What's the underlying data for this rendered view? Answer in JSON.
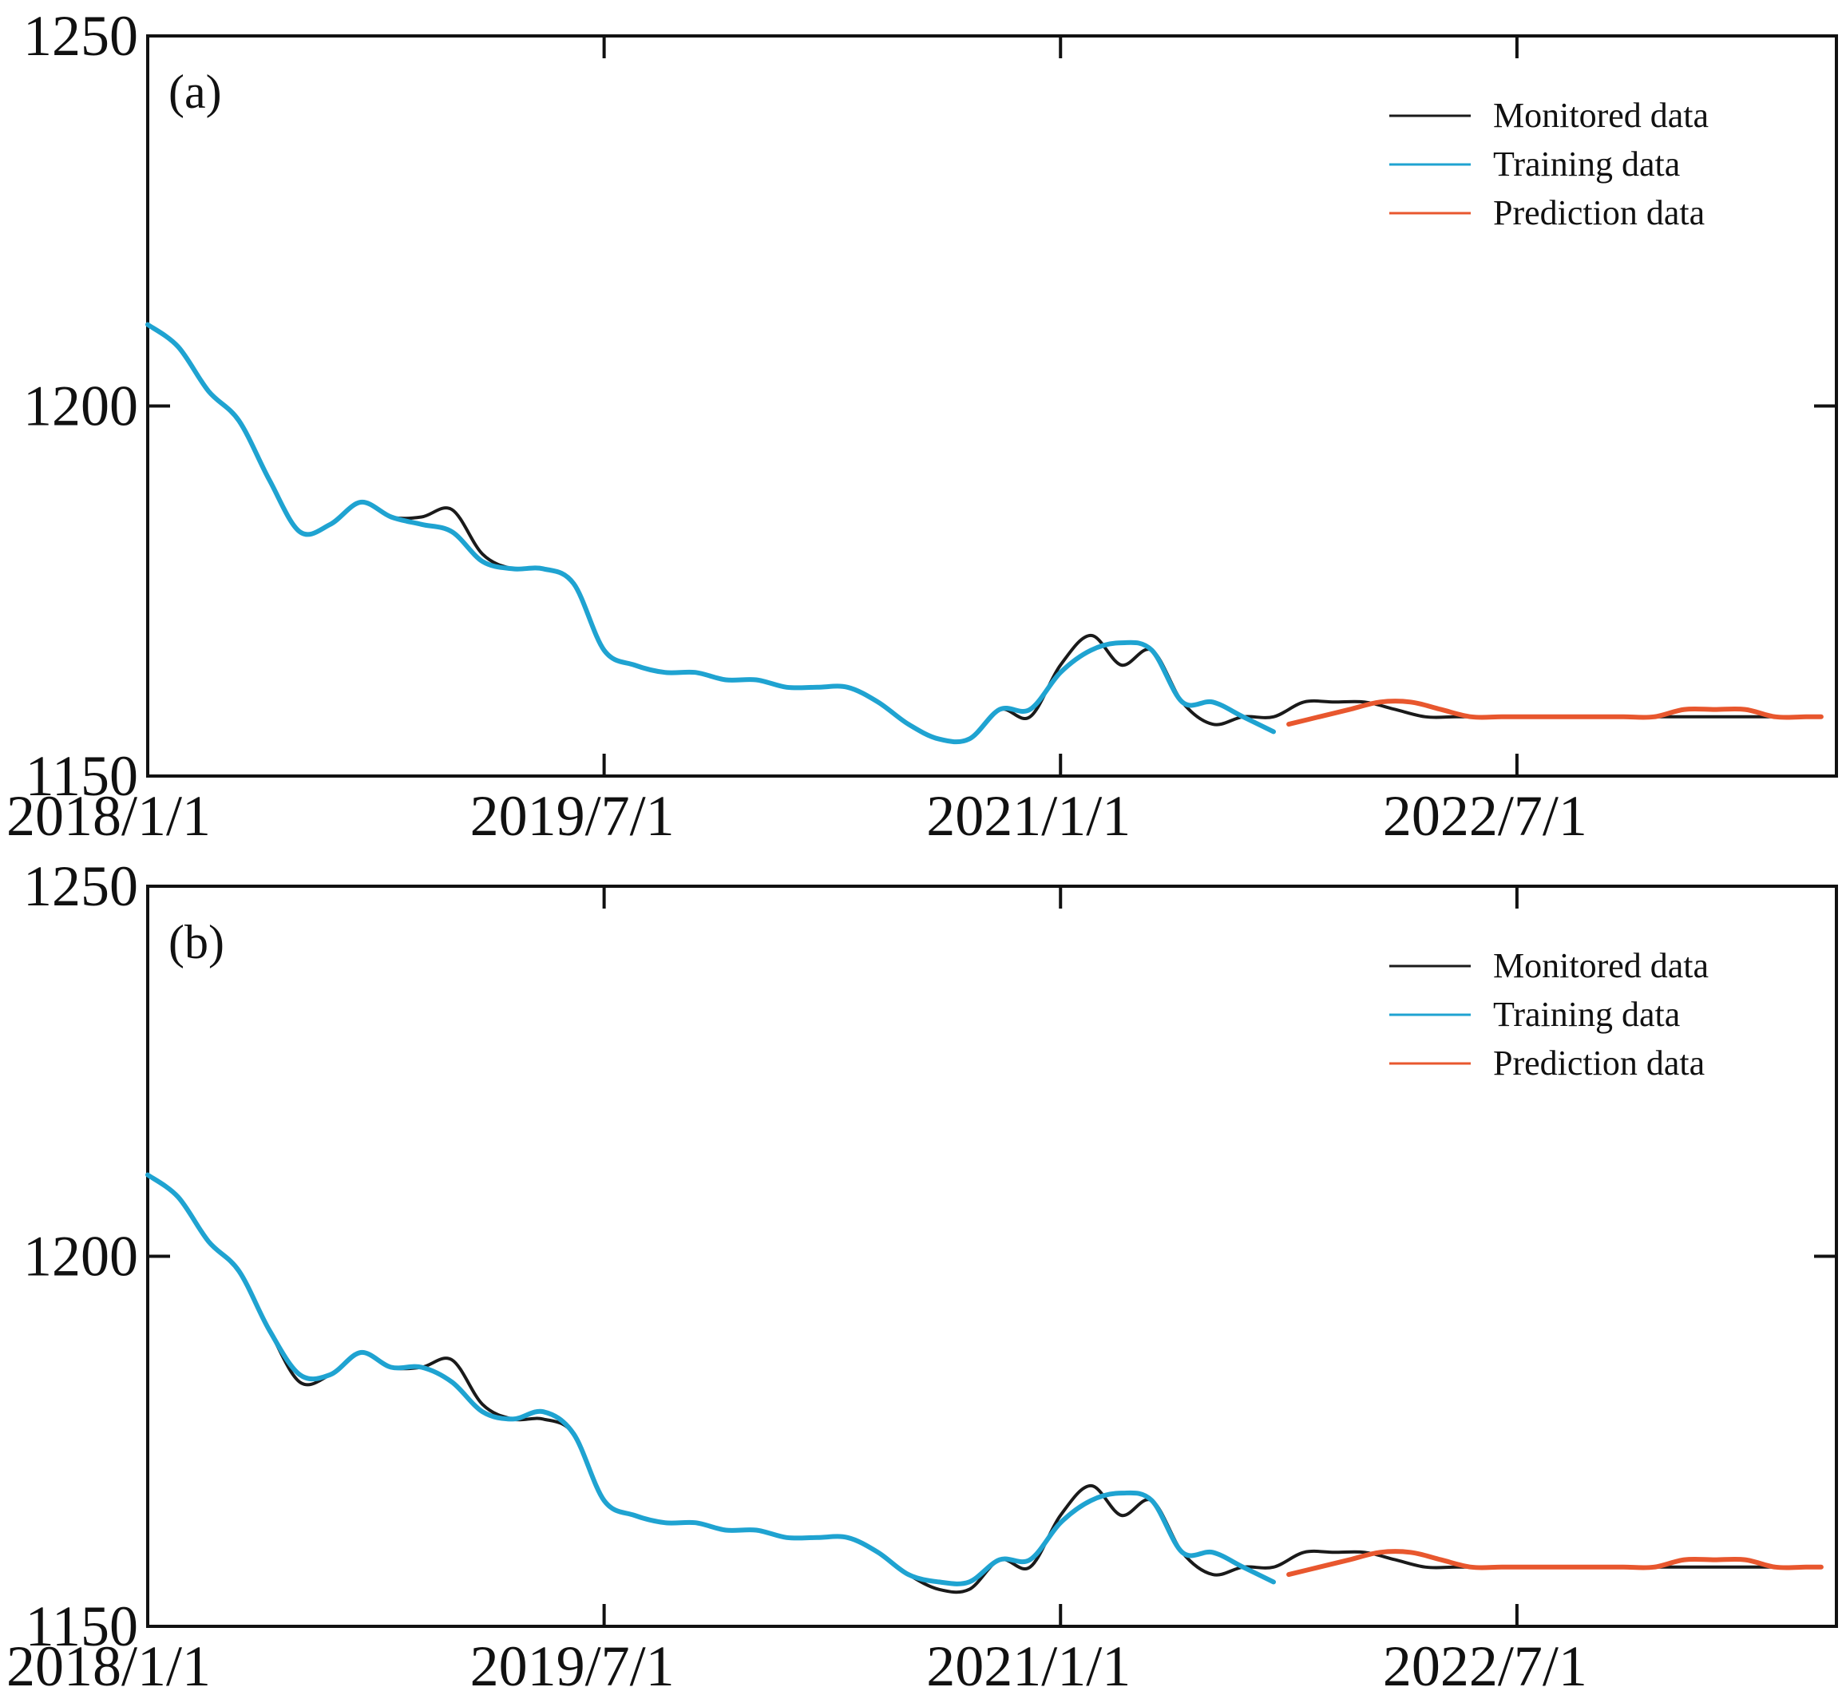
{
  "colors": {
    "monitored": "#1a1a1a",
    "training": "#1fa3d1",
    "prediction": "#e8572e",
    "axis": "#111111"
  },
  "chart_data": [
    {
      "type": "line",
      "panel_label": "(a)",
      "title": "",
      "xlabel": "",
      "ylabel": "",
      "x_is_decimal_year": true,
      "xlim": [
        2018.0,
        2023.55
      ],
      "ylim": [
        1150,
        1250
      ],
      "x_ticks": [
        2018.0,
        2019.5,
        2021.0,
        2022.5
      ],
      "x_tick_labels": [
        "2018/1/1",
        "2019/7/1",
        "2021/1/1",
        "2022/7/1"
      ],
      "y_ticks": [
        1150,
        1200,
        1250
      ],
      "y_tick_labels": [
        "1150",
        "1200",
        "1250"
      ],
      "legend": [
        "Monitored data",
        "Training data",
        "Prediction data"
      ],
      "legend_position": "top-right",
      "series": [
        {
          "name": "Monitored data",
          "x": [
            2018.0,
            2018.1,
            2018.2,
            2018.3,
            2018.4,
            2018.5,
            2018.6,
            2018.7,
            2018.8,
            2018.9,
            2019.0,
            2019.1,
            2019.2,
            2019.3,
            2019.4,
            2019.5,
            2019.6,
            2019.7,
            2019.8,
            2019.9,
            2020.0,
            2020.1,
            2020.2,
            2020.3,
            2020.4,
            2020.5,
            2020.6,
            2020.7,
            2020.8,
            2020.9,
            2021.0,
            2021.1,
            2021.2,
            2021.3,
            2021.4,
            2021.5,
            2021.6,
            2021.7,
            2021.8,
            2021.9,
            2022.0,
            2022.1,
            2022.2,
            2022.3,
            2022.4,
            2022.5,
            2022.6,
            2022.7,
            2022.8,
            2022.9,
            2023.0,
            2023.1,
            2023.2,
            2023.3,
            2023.4,
            2023.5
          ],
          "y": [
            1211,
            1208,
            1202,
            1198,
            1190,
            1183,
            1184,
            1187,
            1185,
            1185,
            1186,
            1180,
            1178,
            1178,
            1176,
            1167,
            1165,
            1164,
            1164,
            1163,
            1163,
            1162,
            1162,
            1162,
            1160,
            1157,
            1155,
            1155,
            1159,
            1158,
            1165,
            1169,
            1165,
            1167,
            1160,
            1157,
            1158,
            1158,
            1160,
            1160,
            1160,
            1159,
            1158,
            1158,
            1158,
            1158,
            1158,
            1158,
            1158,
            1158,
            1158,
            1158,
            1158,
            1158,
            1158,
            1158
          ],
          "smooth": true
        },
        {
          "name": "Training data",
          "x": [
            2018.0,
            2018.1,
            2018.2,
            2018.3,
            2018.4,
            2018.5,
            2018.6,
            2018.7,
            2018.8,
            2018.9,
            2019.0,
            2019.1,
            2019.2,
            2019.3,
            2019.4,
            2019.5,
            2019.6,
            2019.7,
            2019.8,
            2019.9,
            2020.0,
            2020.1,
            2020.2,
            2020.3,
            2020.4,
            2020.5,
            2020.6,
            2020.7,
            2020.8,
            2020.9,
            2021.0,
            2021.1,
            2021.2,
            2021.3,
            2021.4,
            2021.5,
            2021.6,
            2021.7
          ],
          "y": [
            1211,
            1208,
            1202,
            1198,
            1190,
            1183,
            1184,
            1187,
            1185,
            1184,
            1183,
            1179,
            1178,
            1178,
            1176,
            1167,
            1165,
            1164,
            1164,
            1163,
            1163,
            1162,
            1162,
            1162,
            1160,
            1157,
            1155,
            1155,
            1159,
            1159,
            1164,
            1167,
            1168,
            1167,
            1160,
            1160,
            1158,
            1156
          ],
          "smooth": true
        },
        {
          "name": "Prediction data",
          "x": [
            2021.75,
            2021.85,
            2021.95,
            2022.05,
            2022.15,
            2022.25,
            2022.35,
            2022.45,
            2022.55,
            2022.65,
            2022.75,
            2022.85,
            2022.95,
            2023.05,
            2023.15,
            2023.25,
            2023.35,
            2023.45,
            2023.5
          ],
          "y": [
            1157,
            1158,
            1159,
            1160,
            1160,
            1159,
            1158,
            1158,
            1158,
            1158,
            1158,
            1158,
            1158,
            1159,
            1159,
            1159,
            1158,
            1158,
            1158
          ],
          "smooth": true
        }
      ]
    },
    {
      "type": "line",
      "panel_label": "(b)",
      "title": "",
      "xlabel": "",
      "ylabel": "",
      "x_is_decimal_year": true,
      "xlim": [
        2018.0,
        2023.55
      ],
      "ylim": [
        1150,
        1250
      ],
      "x_ticks": [
        2018.0,
        2019.5,
        2021.0,
        2022.5
      ],
      "x_tick_labels": [
        "2018/1/1",
        "2019/7/1",
        "2021/1/1",
        "2022/7/1"
      ],
      "y_ticks": [
        1150,
        1200,
        1250
      ],
      "y_tick_labels": [
        "1150",
        "1200",
        "1250"
      ],
      "legend": [
        "Monitored data",
        "Training data",
        "Prediction data"
      ],
      "legend_position": "top-right",
      "series": [
        {
          "name": "Monitored data",
          "x": [
            2018.0,
            2018.1,
            2018.2,
            2018.3,
            2018.4,
            2018.5,
            2018.6,
            2018.7,
            2018.8,
            2018.9,
            2019.0,
            2019.1,
            2019.2,
            2019.3,
            2019.4,
            2019.5,
            2019.6,
            2019.7,
            2019.8,
            2019.9,
            2020.0,
            2020.1,
            2020.2,
            2020.3,
            2020.4,
            2020.5,
            2020.6,
            2020.7,
            2020.8,
            2020.9,
            2021.0,
            2021.1,
            2021.2,
            2021.3,
            2021.4,
            2021.5,
            2021.6,
            2021.7,
            2021.8,
            2021.9,
            2022.0,
            2022.1,
            2022.2,
            2022.3,
            2022.4,
            2022.5,
            2022.6,
            2022.7,
            2022.8,
            2022.9,
            2023.0,
            2023.1,
            2023.2,
            2023.3,
            2023.4,
            2023.5
          ],
          "y": [
            1211,
            1208,
            1202,
            1198,
            1190,
            1183,
            1184,
            1187,
            1185,
            1185,
            1186,
            1180,
            1178,
            1178,
            1176,
            1167,
            1165,
            1164,
            1164,
            1163,
            1163,
            1162,
            1162,
            1162,
            1160,
            1157,
            1155,
            1155,
            1159,
            1158,
            1165,
            1169,
            1165,
            1167,
            1160,
            1157,
            1158,
            1158,
            1160,
            1160,
            1160,
            1159,
            1158,
            1158,
            1158,
            1158,
            1158,
            1158,
            1158,
            1158,
            1158,
            1158,
            1158,
            1158,
            1158,
            1158
          ],
          "smooth": true
        },
        {
          "name": "Training data",
          "x": [
            2018.0,
            2018.1,
            2018.2,
            2018.3,
            2018.4,
            2018.5,
            2018.6,
            2018.7,
            2018.8,
            2018.9,
            2019.0,
            2019.1,
            2019.2,
            2019.3,
            2019.4,
            2019.5,
            2019.6,
            2019.7,
            2019.8,
            2019.9,
            2020.0,
            2020.1,
            2020.2,
            2020.3,
            2020.4,
            2020.5,
            2020.6,
            2020.7,
            2020.8,
            2020.9,
            2021.0,
            2021.1,
            2021.2,
            2021.3,
            2021.4,
            2021.5,
            2021.6,
            2021.7
          ],
          "y": [
            1211,
            1208,
            1202,
            1198,
            1190,
            1184,
            1184,
            1187,
            1185,
            1185,
            1183,
            1179,
            1178,
            1179,
            1176,
            1167,
            1165,
            1164,
            1164,
            1163,
            1163,
            1162,
            1162,
            1162,
            1160,
            1157,
            1156,
            1156,
            1159,
            1159,
            1164,
            1167,
            1168,
            1167,
            1160,
            1160,
            1158,
            1156
          ],
          "smooth": true
        },
        {
          "name": "Prediction data",
          "x": [
            2021.75,
            2021.85,
            2021.95,
            2022.05,
            2022.15,
            2022.25,
            2022.35,
            2022.45,
            2022.55,
            2022.65,
            2022.75,
            2022.85,
            2022.95,
            2023.05,
            2023.15,
            2023.25,
            2023.35,
            2023.45,
            2023.5
          ],
          "y": [
            1157,
            1158,
            1159,
            1160,
            1160,
            1159,
            1158,
            1158,
            1158,
            1158,
            1158,
            1158,
            1158,
            1159,
            1159,
            1159,
            1158,
            1158,
            1158
          ],
          "smooth": true
        }
      ]
    }
  ]
}
